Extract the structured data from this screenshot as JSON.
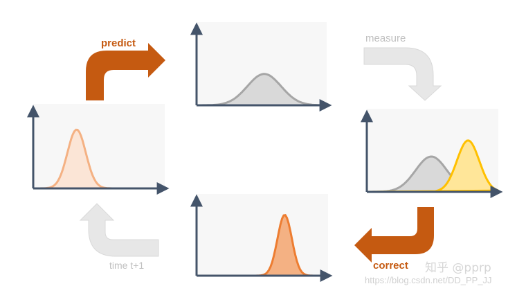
{
  "labels": {
    "predict": "predict",
    "measure": "measure",
    "correct": "correct",
    "time_step": "time t+1"
  },
  "watermark": {
    "text": "知乎 @pprp",
    "url": "https://blog.csdn.net/DD_PP_JJ"
  },
  "colors": {
    "axis": "#44546a",
    "panel_bg": "#f7f7f7",
    "active_arrow": "#c55a11",
    "inactive_arrow": "#e7e7e7",
    "inactive_arrow_border": "#d9d9d9",
    "inactive_text": "#bfbfbf",
    "prior_fill": "#fbe5d6",
    "prior_stroke": "#f4b183",
    "predicted_fill": "#d9d9d9",
    "predicted_stroke": "#a6a6a6",
    "measurement_fill": "#ffe699",
    "measurement_stroke": "#ffc000",
    "posterior_fill": "#f4b183",
    "posterior_stroke": "#ed7d31"
  },
  "distributions": {
    "prior": {
      "mean": 0.33,
      "sd": 0.07,
      "peak": 0.72
    },
    "predicted": {
      "mean": 0.52,
      "sd": 0.13,
      "peak": 0.39
    },
    "measured_prediction": {
      "mean": 0.49,
      "sd": 0.12,
      "peak": 0.44
    },
    "measurement": {
      "mean": 0.77,
      "sd": 0.085,
      "peak": 0.64
    },
    "posterior": {
      "mean": 0.67,
      "sd": 0.055,
      "peak": 0.77
    }
  }
}
